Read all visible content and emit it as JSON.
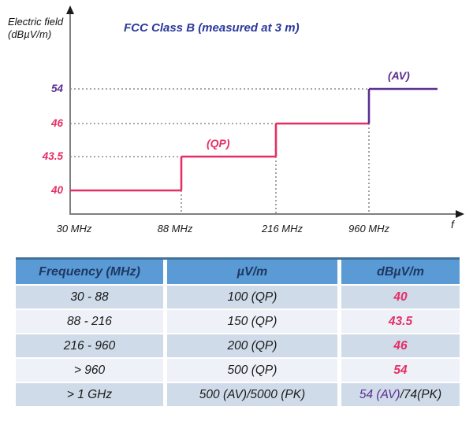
{
  "chart_data": {
    "type": "step-line",
    "title": "FCC Class B (measured at 3 m)",
    "ylabel_line1": "Electric field",
    "ylabel_line2": "(dBµV/m)",
    "xlabel": "f",
    "x_tick_labels": [
      "30 MHz",
      "88 MHz",
      "216 MHz",
      "960 MHz"
    ],
    "y_tick_labels": [
      "40",
      "43.5",
      "46",
      "54"
    ],
    "x_breakpoints_mhz": [
      30,
      88,
      216,
      960
    ],
    "levels_dbuv": [
      40,
      43.5,
      46,
      54
    ],
    "grid": "dotted horizontal at each limit level and dotted vertical at each breakpoint",
    "segments": [
      {
        "from_mhz": 30,
        "to_mhz": 88,
        "level_dbuv": 40,
        "detector": "QP",
        "color": "#e62e66"
      },
      {
        "from_mhz": 88,
        "to_mhz": 216,
        "level_dbuv": 43.5,
        "detector": "QP",
        "color": "#e62e66"
      },
      {
        "from_mhz": 216,
        "to_mhz": 960,
        "level_dbuv": 46,
        "detector": "QP",
        "color": "#e62e66"
      },
      {
        "from_mhz": 960,
        "to_mhz": null,
        "level_dbuv": 54,
        "detector": "AV",
        "color": "#5c2d91"
      }
    ],
    "annotations": [
      {
        "text": "(QP)",
        "color": "#e62e66"
      },
      {
        "text": "(AV)",
        "color": "#5c2d91"
      }
    ],
    "colors": {
      "qp_line": "#e62e66",
      "av_line": "#5c2d91",
      "axis": "#7f7f7f",
      "gridline": "#8c8c8c",
      "title": "#2b3a9c",
      "arrow": "#1a1a1a"
    }
  },
  "table": {
    "colors": {
      "header_bg": "#5b9bd5",
      "header_text": "#1f3864",
      "header_top_border": "#41719c",
      "band_dark": "#cfdbe9",
      "band_light": "#eef1f7",
      "value_pink": "#e62e66",
      "value_purple": "#5c2d91"
    },
    "headers": [
      "Frequency (MHz)",
      "µV/m",
      "dBµV/m"
    ],
    "rows": [
      {
        "freq": "30 - 88",
        "uvm": "100 (QP)",
        "dbuv": "40"
      },
      {
        "freq": "88 - 216",
        "uvm": "150 (QP)",
        "dbuv": "43.5"
      },
      {
        "freq": "216 - 960",
        "uvm": "200 (QP)",
        "dbuv": "46"
      },
      {
        "freq": "> 960",
        "uvm": "500 (QP)",
        "dbuv": "54"
      },
      {
        "freq": "> 1 GHz",
        "uvm": "500 (AV)/5000 (PK)",
        "dbuv_av": "54 (AV)",
        "dbuv_pk": "/74(PK)"
      }
    ]
  }
}
